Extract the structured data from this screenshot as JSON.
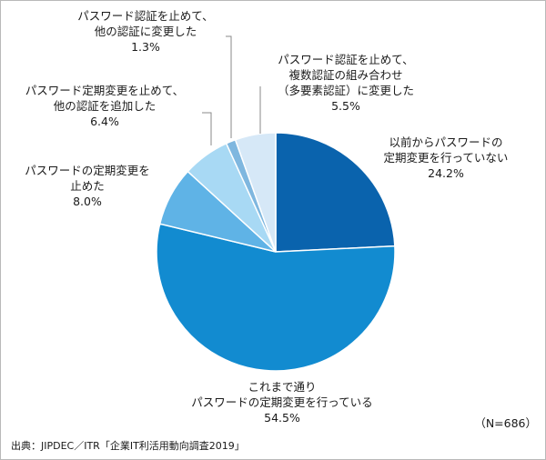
{
  "chart_data": {
    "type": "pie",
    "slices": [
      {
        "label_lines": [
          "以前からパスワードの",
          "定期変更を行っていない"
        ],
        "value": 24.2,
        "value_text": "24.2%",
        "color": "#0a63ad"
      },
      {
        "label_lines": [
          "これまで通り",
          "パスワードの定期変更を行っている"
        ],
        "value": 54.5,
        "value_text": "54.5%",
        "color": "#128bd0"
      },
      {
        "label_lines": [
          "パスワードの定期変更を",
          "止めた"
        ],
        "value": 8.0,
        "value_text": "8.0%",
        "color": "#5fb3e6"
      },
      {
        "label_lines": [
          "パスワード定期変更を止めて、",
          "他の認証を追加した"
        ],
        "value": 6.4,
        "value_text": "6.4%",
        "color": "#a8d9f4"
      },
      {
        "label_lines": [
          "パスワード認証を止めて、",
          "他の認証に変更した"
        ],
        "value": 1.3,
        "value_text": "1.3%",
        "color": "#7fb7df"
      },
      {
        "label_lines": [
          "パスワード認証を止めて、",
          "複数認証の組み合わせ",
          "（多要素認証）に変更した"
        ],
        "value": 5.5,
        "value_text": "5.5%",
        "color": "#d6e8f7"
      }
    ]
  },
  "sample_size": "（N=686）",
  "source": "出典：JIPDEC／ITR「企業IT利活用動向調査2019」"
}
